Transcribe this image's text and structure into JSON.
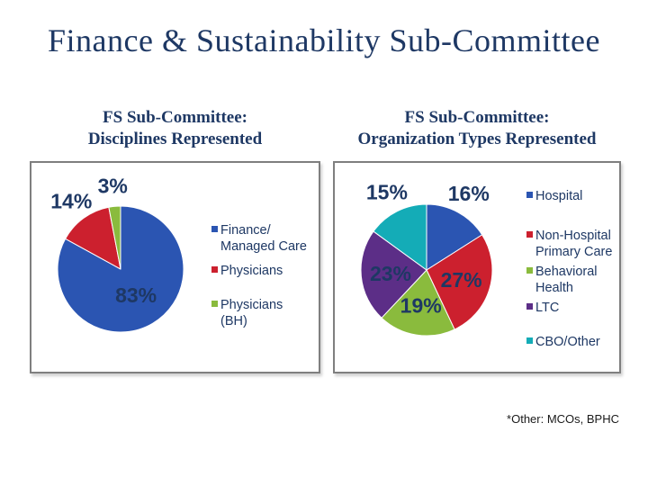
{
  "slide": {
    "title": "Finance & Sustainability Sub-Committee",
    "footnote": "*Other: MCOs, BPHC",
    "background": "#FFFFFF"
  },
  "colors": {
    "navy_text": "#1E3864",
    "box_border": "#7F7F7F",
    "footnote_text": "#1A1A1A",
    "blue": "#2B55B2",
    "red": "#CC202E",
    "green": "#8ABB3D",
    "purple": "#5C2E87",
    "teal": "#14ACB7"
  },
  "chart_data": [
    {
      "type": "pie",
      "title": "FS Sub-Committee: Disciplines Represented",
      "title_lines": [
        "FS Sub-Committee:",
        "Disciplines Represented"
      ],
      "categories": [
        "Finance/Managed Care",
        "Physicians",
        "Physicians (BH)"
      ],
      "values": [
        83,
        14,
        3
      ],
      "value_unit": "%",
      "color_keys": [
        "blue",
        "red",
        "green"
      ],
      "legend_lines": [
        [
          "Finance/",
          "Managed Care"
        ],
        [
          "Physicians"
        ],
        [
          "Physicians",
          "(BH)"
        ]
      ],
      "legend_position": "right",
      "start_angle_deg": 0,
      "direction": "clockwise"
    },
    {
      "type": "pie",
      "title": "FS Sub-Committee: Organization Types Represented",
      "title_lines": [
        "FS Sub-Committee:",
        "Organization Types Represented"
      ],
      "categories": [
        "Hospital",
        "Non-Hospital Primary Care",
        "Behavioral Health",
        "LTC",
        "CBO/Other"
      ],
      "values": [
        16,
        27,
        19,
        23,
        15
      ],
      "value_unit": "%",
      "color_keys": [
        "blue",
        "red",
        "green",
        "purple",
        "teal"
      ],
      "legend_lines": [
        [
          "Hospital"
        ],
        [
          "Non-Hospital",
          "Primary Care"
        ],
        [
          "Behavioral",
          "Health"
        ],
        [
          "LTC"
        ],
        [
          "CBO/Other"
        ]
      ],
      "legend_position": "right",
      "start_angle_deg": 0,
      "direction": "clockwise"
    }
  ]
}
